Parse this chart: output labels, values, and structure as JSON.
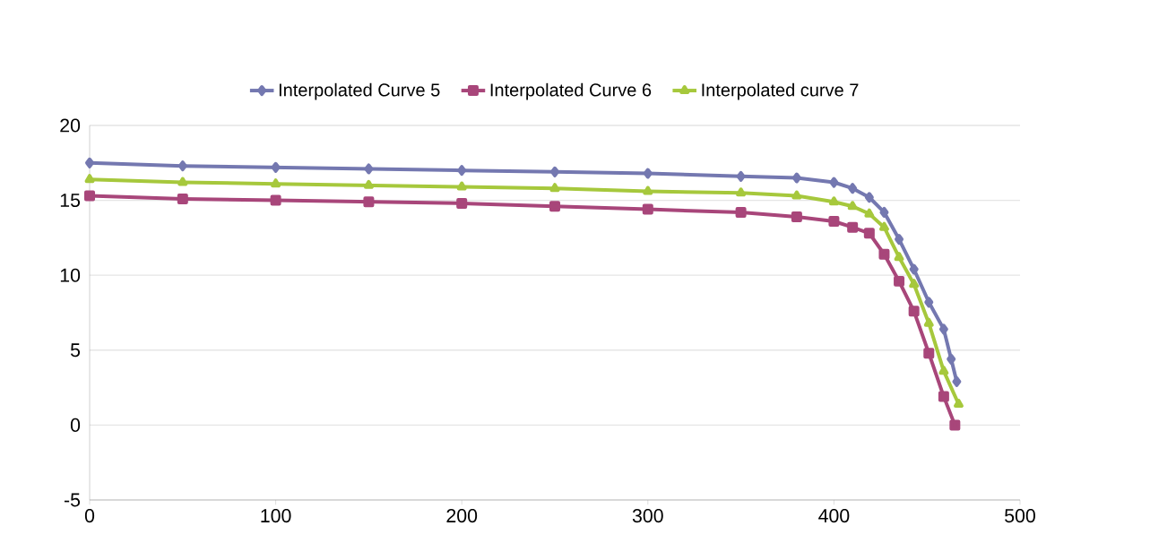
{
  "chart_data": {
    "type": "line",
    "xlim": [
      0,
      500
    ],
    "ylim": [
      -5,
      20
    ],
    "xticks": [
      0,
      100,
      200,
      300,
      400,
      500
    ],
    "yticks": [
      -5,
      0,
      5,
      10,
      15,
      20
    ],
    "grid": "y",
    "legend": "top",
    "series": [
      {
        "name": "Interpolated Curve 5",
        "color": "#7478b0",
        "marker": "diamond",
        "x": [
          0,
          50,
          100,
          150,
          200,
          250,
          300,
          350,
          380,
          400,
          410,
          419,
          427,
          435,
          443,
          451,
          459,
          463,
          466
        ],
        "values": [
          17.5,
          17.3,
          17.2,
          17.1,
          17.0,
          16.9,
          16.8,
          16.6,
          16.5,
          16.2,
          15.8,
          15.2,
          14.2,
          12.4,
          10.4,
          8.2,
          6.4,
          4.4,
          2.9
        ]
      },
      {
        "name": "Interpolated Curve 6",
        "color": "#a8467a",
        "marker": "square",
        "x": [
          0,
          50,
          100,
          150,
          200,
          250,
          300,
          350,
          380,
          400,
          410,
          419,
          427,
          435,
          443,
          451,
          459,
          465
        ],
        "values": [
          15.3,
          15.1,
          15.0,
          14.9,
          14.8,
          14.6,
          14.4,
          14.2,
          13.9,
          13.6,
          13.2,
          12.8,
          11.4,
          9.6,
          7.6,
          4.8,
          1.9,
          0
        ]
      },
      {
        "name": "Interpolated curve 7",
        "color": "#a6c83c",
        "marker": "triangle",
        "x": [
          0,
          50,
          100,
          150,
          200,
          250,
          300,
          350,
          380,
          400,
          410,
          419,
          427,
          435,
          443,
          451,
          459,
          467
        ],
        "values": [
          16.4,
          16.2,
          16.1,
          16.0,
          15.9,
          15.8,
          15.6,
          15.5,
          15.3,
          14.9,
          14.6,
          14.1,
          13.2,
          11.2,
          9.4,
          6.8,
          3.6,
          1.4
        ]
      }
    ]
  }
}
